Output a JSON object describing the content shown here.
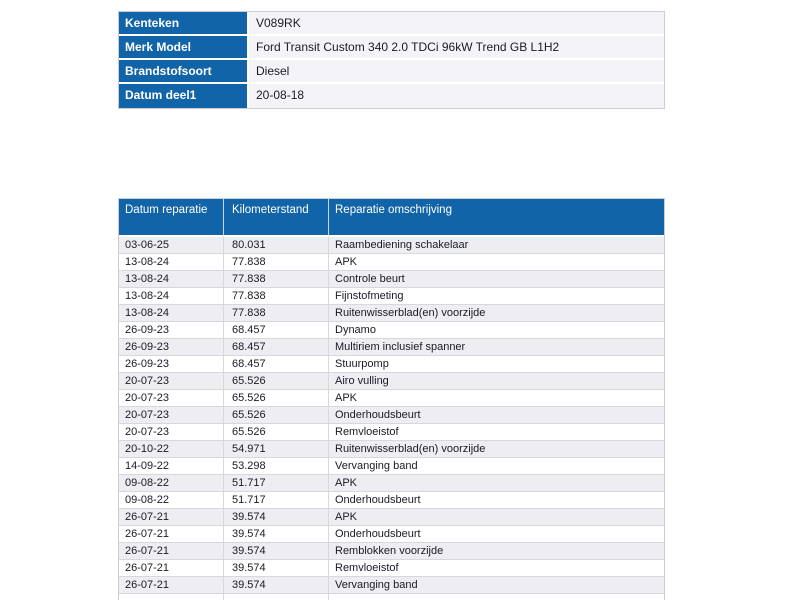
{
  "colors": {
    "header_blue": "#1264a9",
    "alt_row_bg": "#ededf2",
    "value_cell_bg": "#f4f4f8",
    "border": "#d7d7de",
    "text": "#1a1a26"
  },
  "vehicle_info": {
    "rows": [
      {
        "label": "Kenteken",
        "value": "V089RK"
      },
      {
        "label": "Merk Model",
        "value": "Ford Transit Custom 340 2.0 TDCi 96kW Trend GB L1H2"
      },
      {
        "label": "Brandstofsoort",
        "value": "Diesel"
      },
      {
        "label": "Datum deel1",
        "value": "20-08-18"
      }
    ]
  },
  "repair_table": {
    "columns": [
      "Datum reparatie",
      "Kilometerstand",
      "Reparatie omschrijving"
    ],
    "rows": [
      [
        "03-06-25",
        "80.031",
        "Raambediening schakelaar"
      ],
      [
        "13-08-24",
        "77.838",
        "APK"
      ],
      [
        "13-08-24",
        "77.838",
        "Controle beurt"
      ],
      [
        "13-08-24",
        "77.838",
        "Fijnstofmeting"
      ],
      [
        "13-08-24",
        "77.838",
        "Ruitenwisserblad(en) voorzijde"
      ],
      [
        "26-09-23",
        "68.457",
        "Dynamo"
      ],
      [
        "26-09-23",
        "68.457",
        "Multiriem inclusief spanner"
      ],
      [
        "26-09-23",
        "68.457",
        "Stuurpomp"
      ],
      [
        "20-07-23",
        "65.526",
        "Airo vulling"
      ],
      [
        "20-07-23",
        "65.526",
        "APK"
      ],
      [
        "20-07-23",
        "65.526",
        "Onderhoudsbeurt"
      ],
      [
        "20-07-23",
        "65.526",
        "Remvloeistof"
      ],
      [
        "20-10-22",
        "54.971",
        "Ruitenwisserblad(en) voorzijde"
      ],
      [
        "14-09-22",
        "53.298",
        "Vervanging band"
      ],
      [
        "09-08-22",
        "51.717",
        "APK"
      ],
      [
        "09-08-22",
        "51.717",
        "Onderhoudsbeurt"
      ],
      [
        "26-07-21",
        "39.574",
        "APK"
      ],
      [
        "26-07-21",
        "39.574",
        "Onderhoudsbeurt"
      ],
      [
        "26-07-21",
        "39.574",
        "Remblokken voorzijde"
      ],
      [
        "26-07-21",
        "39.574",
        "Remvloeistof"
      ],
      [
        "26-07-21",
        "39.574",
        "Vervanging band"
      ]
    ]
  }
}
